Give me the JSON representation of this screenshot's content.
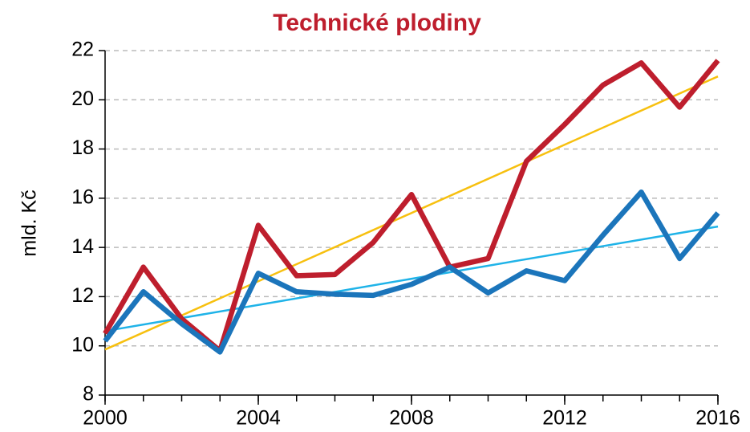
{
  "chart_data": {
    "type": "line",
    "title": "Technické plodiny",
    "y_label": "mld. Kč",
    "x": [
      2000,
      2001,
      2002,
      2003,
      2004,
      2005,
      2006,
      2007,
      2008,
      2009,
      2010,
      2011,
      2012,
      2013,
      2014,
      2015,
      2016
    ],
    "series": [
      {
        "color": "#be1e2d",
        "values": [
          10.5,
          13.2,
          11.1,
          9.8,
          14.9,
          12.85,
          12.9,
          14.2,
          16.15,
          13.2,
          13.55,
          17.5,
          19.0,
          20.6,
          21.5,
          19.7,
          21.6
        ]
      },
      {
        "color": "#1b75bb",
        "values": [
          10.2,
          12.2,
          10.9,
          9.75,
          12.95,
          12.2,
          12.1,
          12.05,
          12.5,
          13.2,
          12.15,
          13.05,
          12.65,
          14.5,
          16.25,
          13.55,
          15.4
        ]
      }
    ],
    "trendlines": [
      {
        "color": "#f7c00f",
        "x": [
          2000,
          2016
        ],
        "values": [
          9.85,
          20.95
        ]
      },
      {
        "color": "#1fb3e8",
        "x": [
          2000,
          2016
        ],
        "values": [
          10.6,
          14.85
        ]
      }
    ],
    "xlim": [
      2000,
      2016
    ],
    "xticks": [
      2000,
      2004,
      2008,
      2012,
      2016
    ],
    "ylim": [
      8,
      22
    ],
    "yticks": [
      8,
      10,
      12,
      14,
      16,
      18,
      20,
      22
    ],
    "grid": true
  }
}
